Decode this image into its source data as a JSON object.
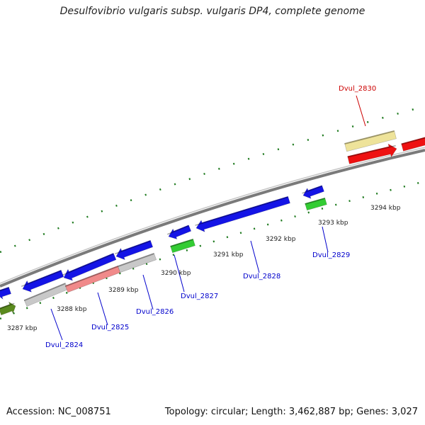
{
  "title": "Desulfovibrio vulgaris subsp. vulgaris DP4, complete genome",
  "footer": {
    "accession": "Accession: NC_008751",
    "summary": "Topology: circular; Length: 3,462,887 bp; Genes: 3,027"
  },
  "colors": {
    "backbone": "#8a8a8a",
    "tick": "#1e7a1e",
    "label_blue": "#0000cc",
    "label_red": "#cc0000",
    "blue_gene": "#1414e6",
    "green_gene": "#33cc33",
    "red_gene": "#ee1111",
    "pink_gene": "#f08a8a",
    "grey_gene": "#c8c8c8",
    "khaki_gene": "#eee39a",
    "olive_gene": "#5a8a1e"
  },
  "positions": [
    {
      "label": "3287 kbp"
    },
    {
      "label": "3288 kbp"
    },
    {
      "label": "3289 kbp"
    },
    {
      "label": "3290 kbp"
    },
    {
      "label": "3291 kbp"
    },
    {
      "label": "3292 kbp"
    },
    {
      "label": "3293 kbp"
    },
    {
      "label": "3294 kbp"
    }
  ],
  "genes": [
    {
      "name": "Dvul_2824",
      "color": "label_blue"
    },
    {
      "name": "Dvul_2825",
      "color": "label_blue"
    },
    {
      "name": "Dvul_2826",
      "color": "label_blue"
    },
    {
      "name": "Dvul_2827",
      "color": "label_blue"
    },
    {
      "name": "Dvul_2828",
      "color": "label_blue"
    },
    {
      "name": "Dvul_2829",
      "color": "label_blue"
    },
    {
      "name": "Dvul_2830",
      "color": "label_red"
    }
  ]
}
